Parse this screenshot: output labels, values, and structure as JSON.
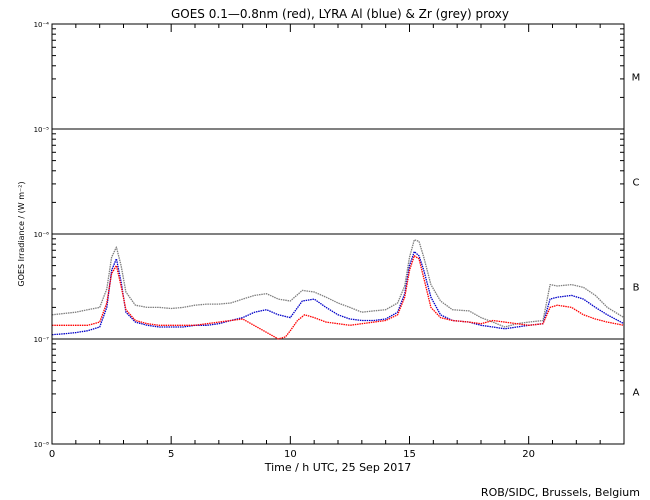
{
  "chart_data": {
    "type": "line",
    "title": "GOES 0.1—0.8nm (red), LYRA Al (blue) & Zr (grey) proxy",
    "xlabel": "Time / h UTC, 25 Sep 2017",
    "ylabel": "GOES Irradiance / (W m⁻²)",
    "credit": "ROB/SIDC, Brussels, Belgium",
    "xlim": [
      0,
      24
    ],
    "ylim": [
      1e-08,
      0.0001
    ],
    "yscale": "log",
    "x_ticks": [
      {
        "value": 0,
        "label": "0"
      },
      {
        "value": 5,
        "label": "5"
      },
      {
        "value": 10,
        "label": "10"
      },
      {
        "value": 15,
        "label": "15"
      },
      {
        "value": 20,
        "label": "20"
      }
    ],
    "y_ticks": [
      {
        "value": 1e-08,
        "label": "10⁻⁸"
      },
      {
        "value": 1e-07,
        "label": "10⁻⁷"
      },
      {
        "value": 1e-06,
        "label": "10⁻⁶"
      },
      {
        "value": 1e-05,
        "label": "10⁻⁵"
      },
      {
        "value": 0.0001,
        "label": "10⁻⁴"
      }
    ],
    "flare_class_lines": [
      1e-07,
      1e-06,
      1e-05
    ],
    "flare_classes": [
      {
        "label": "A",
        "value": 3.16e-08
      },
      {
        "label": "B",
        "value": 3.16e-07
      },
      {
        "label": "C",
        "value": 3.16e-06
      },
      {
        "label": "M",
        "value": 3.16e-05
      }
    ],
    "series": [
      {
        "color": "#7f7f7f",
        "x": [
          0,
          0.5,
          1,
          1.5,
          2,
          2.3,
          2.5,
          2.7,
          2.9,
          3.1,
          3.5,
          4,
          4.5,
          5,
          5.5,
          6,
          6.5,
          7,
          7.5,
          8,
          8.5,
          9,
          9.5,
          10,
          10.5,
          11,
          11.5,
          12,
          12.5,
          13,
          13.5,
          14,
          14.5,
          14.8,
          15,
          15.2,
          15.4,
          15.6,
          15.9,
          16.3,
          16.8,
          17.5,
          18,
          18.5,
          19,
          19.5,
          20,
          20.6,
          20.9,
          21.2,
          21.8,
          22.3,
          22.8,
          23.3,
          24
        ],
        "y": [
          1.7e-07,
          1.75e-07,
          1.8e-07,
          1.9e-07,
          2e-07,
          3e-07,
          6e-07,
          7.5e-07,
          5e-07,
          2.8e-07,
          2.1e-07,
          2e-07,
          2e-07,
          1.95e-07,
          2e-07,
          2.1e-07,
          2.15e-07,
          2.15e-07,
          2.2e-07,
          2.4e-07,
          2.6e-07,
          2.7e-07,
          2.4e-07,
          2.3e-07,
          2.9e-07,
          2.8e-07,
          2.5e-07,
          2.2e-07,
          2e-07,
          1.8e-07,
          1.85e-07,
          1.9e-07,
          2.2e-07,
          3.2e-07,
          6e-07,
          8.8e-07,
          8.5e-07,
          6e-07,
          3.3e-07,
          2.3e-07,
          1.9e-07,
          1.85e-07,
          1.6e-07,
          1.45e-07,
          1.3e-07,
          1.4e-07,
          1.45e-07,
          1.5e-07,
          3.3e-07,
          3.2e-07,
          3.3e-07,
          3.1e-07,
          2.6e-07,
          2e-07,
          1.6e-07
        ]
      },
      {
        "color": "#0000c8",
        "x": [
          0,
          0.5,
          1,
          1.5,
          2,
          2.3,
          2.5,
          2.7,
          2.9,
          3.1,
          3.5,
          4,
          4.5,
          5,
          5.5,
          6,
          6.5,
          7,
          7.5,
          8,
          8.5,
          9,
          9.5,
          10,
          10.5,
          11,
          11.5,
          12,
          12.5,
          13,
          13.5,
          14,
          14.5,
          14.8,
          15,
          15.2,
          15.4,
          15.6,
          15.9,
          16.3,
          16.8,
          17.5,
          18,
          18.5,
          19,
          19.5,
          20,
          20.6,
          20.9,
          21.2,
          21.8,
          22.3,
          22.8,
          23.3,
          24
        ],
        "y": [
          1.1e-07,
          1.12e-07,
          1.15e-07,
          1.2e-07,
          1.3e-07,
          2e-07,
          4.5e-07,
          5.8e-07,
          3.5e-07,
          1.8e-07,
          1.45e-07,
          1.35e-07,
          1.3e-07,
          1.3e-07,
          1.3e-07,
          1.35e-07,
          1.35e-07,
          1.4e-07,
          1.5e-07,
          1.6e-07,
          1.8e-07,
          1.9e-07,
          1.7e-07,
          1.6e-07,
          2.3e-07,
          2.4e-07,
          2e-07,
          1.7e-07,
          1.55e-07,
          1.5e-07,
          1.5e-07,
          1.55e-07,
          1.8e-07,
          2.7e-07,
          5e-07,
          6.8e-07,
          6.2e-07,
          4.5e-07,
          2.5e-07,
          1.7e-07,
          1.5e-07,
          1.45e-07,
          1.35e-07,
          1.3e-07,
          1.25e-07,
          1.3e-07,
          1.35e-07,
          1.4e-07,
          2.4e-07,
          2.5e-07,
          2.6e-07,
          2.4e-07,
          2e-07,
          1.7e-07,
          1.4e-07
        ]
      },
      {
        "color": "#ff0000",
        "x": [
          0,
          0.5,
          1,
          1.5,
          2,
          2.3,
          2.5,
          2.7,
          2.9,
          3.1,
          3.5,
          4,
          4.5,
          5,
          5.5,
          6,
          6.5,
          7,
          7.5,
          8,
          9.5,
          9.8,
          10,
          10.3,
          10.6,
          11,
          11.5,
          12,
          12.5,
          13,
          13.5,
          14,
          14.5,
          14.8,
          15,
          15.2,
          15.4,
          15.6,
          15.9,
          16.3,
          16.8,
          17.5,
          18,
          18.5,
          19,
          19.5,
          20,
          20.6,
          20.9,
          21.2,
          21.8,
          22.3,
          22.8,
          23.3,
          24
        ],
        "y": [
          1.35e-07,
          1.35e-07,
          1.35e-07,
          1.35e-07,
          1.45e-07,
          2.2e-07,
          4.2e-07,
          5e-07,
          3.2e-07,
          1.9e-07,
          1.5e-07,
          1.4e-07,
          1.35e-07,
          1.35e-07,
          1.35e-07,
          1.35e-07,
          1.4e-07,
          1.45e-07,
          1.5e-07,
          1.55e-07,
          1e-07,
          1.05e-07,
          1.2e-07,
          1.5e-07,
          1.7e-07,
          1.6e-07,
          1.45e-07,
          1.4e-07,
          1.35e-07,
          1.4e-07,
          1.45e-07,
          1.5e-07,
          1.7e-07,
          2.5e-07,
          4.5e-07,
          6.2e-07,
          5.8e-07,
          3.8e-07,
          2e-07,
          1.6e-07,
          1.5e-07,
          1.45e-07,
          1.4e-07,
          1.5e-07,
          1.45e-07,
          1.4e-07,
          1.35e-07,
          1.4e-07,
          2e-07,
          2.1e-07,
          2e-07,
          1.7e-07,
          1.55e-07,
          1.45e-07,
          1.35e-07
        ]
      }
    ]
  }
}
